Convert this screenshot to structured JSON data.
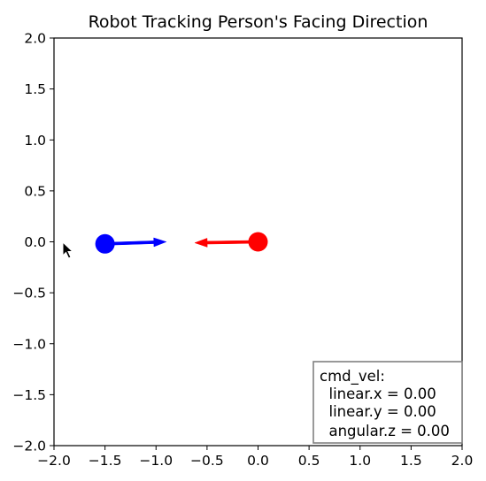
{
  "chart_data": {
    "type": "scatter",
    "title": "Robot Tracking Person's Facing Direction",
    "xlabel": "",
    "ylabel": "",
    "xlim": [
      -2.0,
      2.0
    ],
    "ylim": [
      -2.0,
      2.0
    ],
    "x_ticks": [
      "−2.0",
      "−1.5",
      "−1.0",
      "−0.5",
      "0.0",
      "0.5",
      "1.0",
      "1.5",
      "2.0"
    ],
    "y_ticks": [
      "2.0",
      "1.5",
      "1.0",
      "0.5",
      "0.0",
      "−0.5",
      "−1.0",
      "−1.5",
      "−2.0"
    ],
    "grid": false,
    "legend": "none",
    "points": [
      {
        "role": "robot",
        "x": -1.5,
        "y": -0.02,
        "color": "#0000ff"
      },
      {
        "role": "person",
        "x": 0.0,
        "y": 0.0,
        "color": "#ff0000"
      }
    ],
    "arrows": [
      {
        "role": "robot-heading",
        "x": -1.5,
        "y": -0.02,
        "dx": 0.6,
        "dy": 0.02,
        "color": "#0000ff"
      },
      {
        "role": "person-facing",
        "x": 0.0,
        "y": 0.0,
        "dx": -0.62,
        "dy": -0.01,
        "color": "#ff0000"
      }
    ],
    "info_box": {
      "lines": [
        "cmd_vel:",
        "  linear.x = 0.00",
        "  linear.y = 0.00",
        "  angular.z = 0.00"
      ],
      "location": "bottom-right"
    }
  }
}
